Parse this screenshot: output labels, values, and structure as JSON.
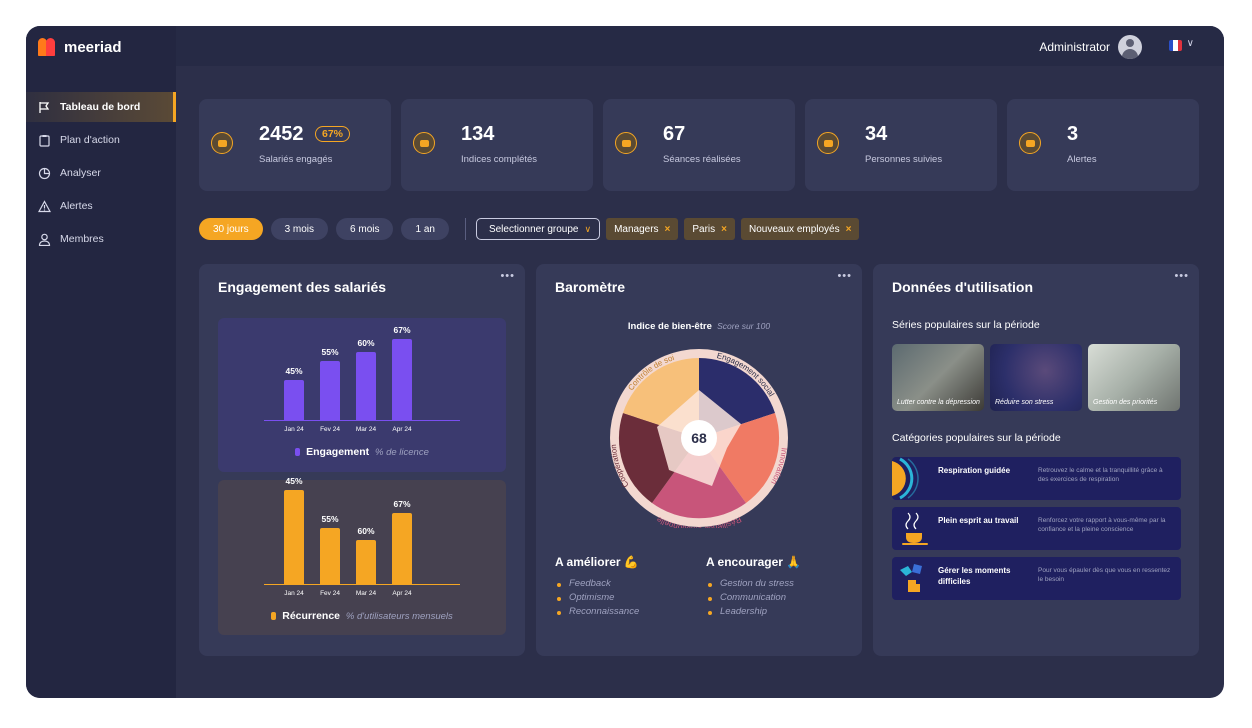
{
  "app": {
    "brand": "meeriad"
  },
  "colors": {
    "accent": "#f5a623",
    "engagement": "#7a4ff0",
    "panel": "#363a58",
    "background": "#2c2f4a"
  },
  "sidebar": {
    "items": [
      {
        "label": "Tableau de bord",
        "icon": "flag-icon",
        "active": true
      },
      {
        "label": "Plan d'action",
        "icon": "clipboard-icon",
        "active": false
      },
      {
        "label": "Analyser",
        "icon": "pie-chart-icon",
        "active": false
      },
      {
        "label": "Alertes",
        "icon": "warning-icon",
        "active": false
      },
      {
        "label": "Membres",
        "icon": "user-icon",
        "active": false
      }
    ]
  },
  "header": {
    "user_name": "Administrator",
    "language_icon": "france-flag-icon"
  },
  "stats": [
    {
      "value": "2452",
      "badge": "67%",
      "label": "Salariés engagés",
      "icon": "users-icon"
    },
    {
      "value": "134",
      "label": "Indices complétés",
      "icon": "gauge-icon"
    },
    {
      "value": "67",
      "label": "Séances réalisées",
      "icon": "book-icon"
    },
    {
      "value": "34",
      "label": "Personnes suivies",
      "icon": "chat-icon"
    },
    {
      "value": "3",
      "label": "Alertes",
      "icon": "warning-icon"
    }
  ],
  "filters": {
    "periods": [
      {
        "label": "30 jours",
        "active": true
      },
      {
        "label": "3 mois",
        "active": false
      },
      {
        "label": "6 mois",
        "active": false
      },
      {
        "label": "1 an",
        "active": false
      }
    ],
    "group_select": "Selectionner groupe",
    "tags": [
      "Managers",
      "Paris",
      "Nouveaux employés"
    ]
  },
  "panels": {
    "engagement": {
      "title": "Engagement des salariés",
      "menu": "•••"
    },
    "barometer": {
      "title": "Baromètre",
      "menu": "•••",
      "index_label": "Indice de bien-être",
      "index_sub": "Score sur 100",
      "score": "68",
      "improve_title": "A améliorer 💪",
      "improve_items": [
        "Feedback",
        "Optimisme",
        "Reconnaissance"
      ],
      "encourage_title": "A encourager 🙏",
      "encourage_items": [
        "Gestion du stress",
        "Communication",
        "Leadership"
      ]
    },
    "usage": {
      "title": "Données d'utilisation",
      "menu": "•••",
      "series_title": "Séries populaires sur la période",
      "series": [
        "Lutter contre la dépression",
        "Réduire son stress",
        "Gestion des priorités"
      ],
      "categories_title": "Catégories populaires sur la période",
      "categories": [
        {
          "name": "Respiration guidée",
          "desc": "Retrouvez le calme et la tranquillité grâce à des exercices de respiration"
        },
        {
          "name": "Plein esprit au travail",
          "desc": "Renforcez votre rapport à vous-même par la confiance et la pleine conscience"
        },
        {
          "name": "Gérer les moments difficiles",
          "desc": "Pour vous épauler dès que vous en ressentez le besoin"
        }
      ]
    }
  },
  "chart_data": [
    {
      "type": "bar",
      "categories": [
        "Jan 24",
        "Fev 24",
        "Mar 24",
        "Apr 24"
      ],
      "values": [
        45,
        55,
        60,
        67
      ],
      "value_labels": [
        "45%",
        "55%",
        "60%",
        "67%"
      ],
      "legend": "Engagement",
      "legend_sub": "% de licence",
      "color": "#7a4ff0"
    },
    {
      "type": "bar",
      "categories": [
        "Jan 24",
        "Fev 24",
        "Mar 24",
        "Apr 24"
      ],
      "values": [
        45,
        55,
        60,
        67
      ],
      "value_labels": [
        "45%",
        "55%",
        "60%",
        "67%"
      ],
      "legend": "Récurrence",
      "legend_sub": "% d'utilisateurs mensuels",
      "color": "#f5a623"
    },
    {
      "type": "pie",
      "categories": [
        "Engagement social",
        "Innovation",
        "Résilience émotionnelle",
        "Coopération",
        "Contrôle de soi"
      ],
      "colors": [
        "#2b2d6b",
        "#f07a64",
        "#c8557a",
        "#6b2d3a",
        "#f7c07a"
      ]
    }
  ]
}
